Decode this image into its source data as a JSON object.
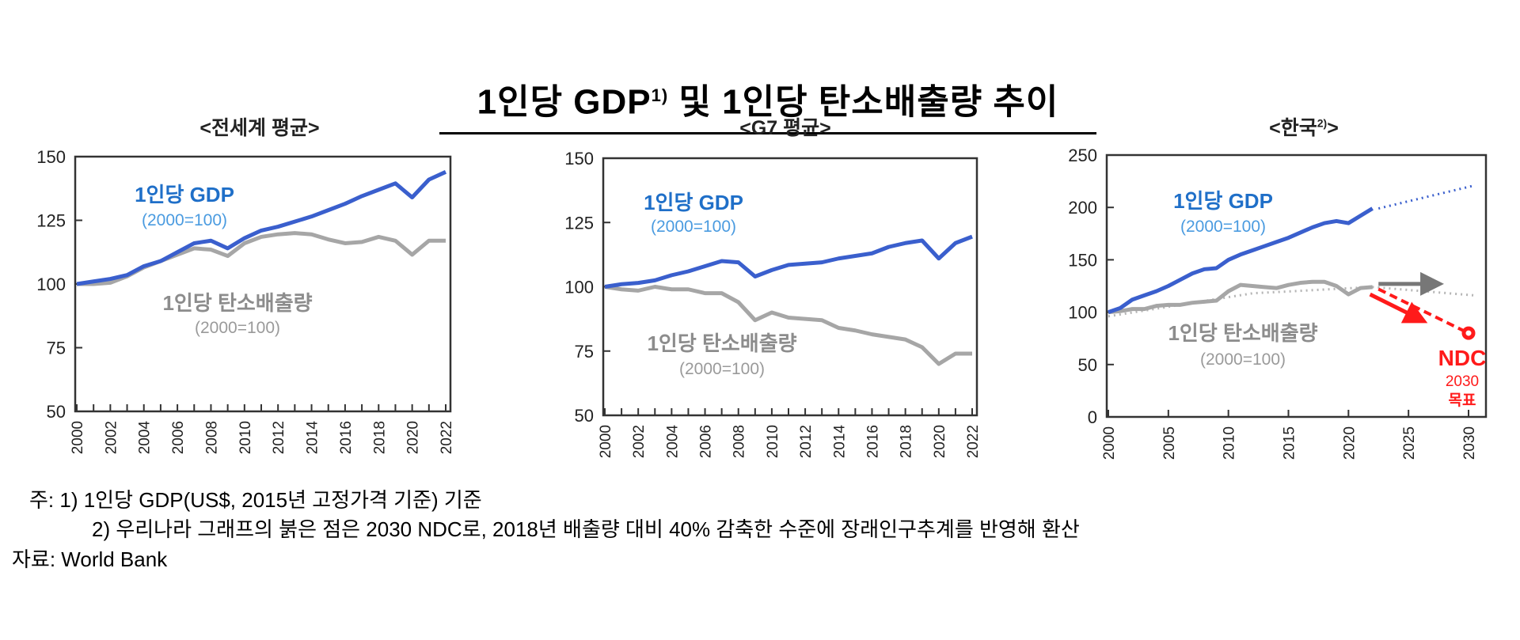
{
  "title": {
    "text": "1인당 GDP",
    "sup": "1)",
    "rest": " 및 1인당 탄소배출량 추이"
  },
  "footnotes": {
    "note1": "주: 1) 1인당 GDP(US$, 2015년 고정가격 기준) 기준",
    "note2": "2) 우리나라 그래프의 붉은 점은 2030 NDC로, 2018년 배출량 대비 40% 감축한 수준에 장래인구추계를 반영해 환산",
    "source": "자료: World Bank"
  },
  "colors": {
    "gdp": "#3a5fcd",
    "gdp_label": "#1f6fc8",
    "gdp_sub": "#4a9be0",
    "co2": "#a6a6a6",
    "co2_label": "#8c8c8c",
    "ndc": "#ff1a1a"
  },
  "chart_data": [
    {
      "type": "line",
      "title": "<전세계 평균>",
      "ylim": [
        50,
        150
      ],
      "yticks": [
        "150",
        "125",
        "100",
        "75",
        "50"
      ],
      "xticks": [
        "2000",
        "2002",
        "2004",
        "2006",
        "2008",
        "2010",
        "2012",
        "2014",
        "2016",
        "2018",
        "2020",
        "2022"
      ],
      "x": [
        2000,
        2001,
        2002,
        2003,
        2004,
        2005,
        2006,
        2007,
        2008,
        2009,
        2010,
        2011,
        2012,
        2013,
        2014,
        2015,
        2016,
        2017,
        2018,
        2019,
        2020,
        2021,
        2022
      ],
      "series": [
        {
          "name": "1인당 GDP",
          "sub": "(2000=100)",
          "values": [
            100,
            101,
            102,
            103.5,
            107,
            109,
            112.5,
            116,
            117,
            114,
            118,
            121,
            122.5,
            124.5,
            126.5,
            129,
            131.5,
            134.5,
            137,
            139.5,
            134,
            141,
            144
          ]
        },
        {
          "name": "1인당 탄소배출량",
          "sub": "(2000=100)",
          "values": [
            100,
            100,
            100.5,
            103,
            106.5,
            109,
            111.5,
            114,
            113.5,
            111,
            116,
            118.5,
            119.5,
            120,
            119.5,
            117.5,
            116,
            116.5,
            118.5,
            117,
            111.5,
            117,
            117
          ]
        }
      ]
    },
    {
      "type": "line",
      "title": "<G7 평균>",
      "ylim": [
        50,
        150
      ],
      "yticks": [
        "150",
        "125",
        "100",
        "75",
        "50"
      ],
      "xticks": [
        "2000",
        "2002",
        "2004",
        "2006",
        "2008",
        "2010",
        "2012",
        "2014",
        "2016",
        "2018",
        "2020",
        "2022"
      ],
      "x": [
        2000,
        2001,
        2002,
        2003,
        2004,
        2005,
        2006,
        2007,
        2008,
        2009,
        2010,
        2011,
        2012,
        2013,
        2014,
        2015,
        2016,
        2017,
        2018,
        2019,
        2020,
        2021,
        2022
      ],
      "series": [
        {
          "name": "1인당 GDP",
          "sub": "(2000=100)",
          "values": [
            100,
            101,
            101.5,
            102.5,
            104.5,
            106,
            108,
            110,
            109.5,
            104,
            106.5,
            108.5,
            109,
            109.5,
            111,
            112,
            113,
            115.5,
            117,
            118,
            111,
            117,
            119.5
          ]
        },
        {
          "name": "1인당 탄소배출량",
          "sub": "(2000=100)",
          "values": [
            100,
            99,
            98.5,
            100,
            99,
            99,
            97.5,
            97.5,
            94,
            87,
            90,
            88,
            87.5,
            87,
            84,
            83,
            81.5,
            80.5,
            79.5,
            76.5,
            70,
            74,
            74
          ]
        }
      ]
    },
    {
      "type": "line",
      "title": "<한국",
      "title_sup": "2)",
      "title_end": ">",
      "ylim": [
        0,
        250
      ],
      "xlim": [
        2000,
        2030
      ],
      "yticks": [
        "250",
        "200",
        "150",
        "100",
        "50",
        "0"
      ],
      "xticks": [
        "2000",
        "2005",
        "2010",
        "2015",
        "2020",
        "2025",
        "2030"
      ],
      "x": [
        2000,
        2001,
        2002,
        2003,
        2004,
        2005,
        2006,
        2007,
        2008,
        2009,
        2010,
        2011,
        2012,
        2013,
        2014,
        2015,
        2016,
        2017,
        2018,
        2019,
        2020,
        2021,
        2022
      ],
      "series": [
        {
          "name": "1인당 GDP",
          "sub": "(2000=100)",
          "values": [
            100,
            104,
            112,
            116,
            120,
            125,
            131,
            137,
            141,
            142,
            150,
            155,
            159,
            163,
            167,
            171,
            176,
            181,
            185,
            187,
            185,
            192,
            199
          ],
          "trend": {
            "x": [
              2022.5,
              2030.5
            ],
            "y": [
              199,
              221
            ]
          }
        },
        {
          "name": "1인당 탄소배출량",
          "sub": "(2000=100)",
          "values": [
            100,
            101,
            103,
            103,
            106,
            107,
            107,
            109,
            110,
            111,
            120,
            126,
            125,
            124,
            123,
            126,
            128,
            129,
            129,
            125,
            117,
            123,
            124
          ],
          "trend": {
            "x": [
              2000,
              2012,
              2022,
              2030.5
            ],
            "y": [
              96,
              118,
              124,
              116
            ]
          }
        }
      ],
      "ndc": {
        "label": "NDC",
        "year_label": "2030",
        "goal_label": "목표",
        "x": 2030,
        "y": 80,
        "from": {
          "x": 2022.5,
          "y": 122
        }
      },
      "arrows": [
        {
          "kind": "flat",
          "from": {
            "x": 2022.5,
            "y": 127
          },
          "to": {
            "x": 2027.3,
            "y": 127
          }
        },
        {
          "kind": "reduce",
          "from": {
            "x": 2021.8,
            "y": 117
          },
          "to": {
            "x": 2026,
            "y": 93
          }
        }
      ]
    }
  ]
}
